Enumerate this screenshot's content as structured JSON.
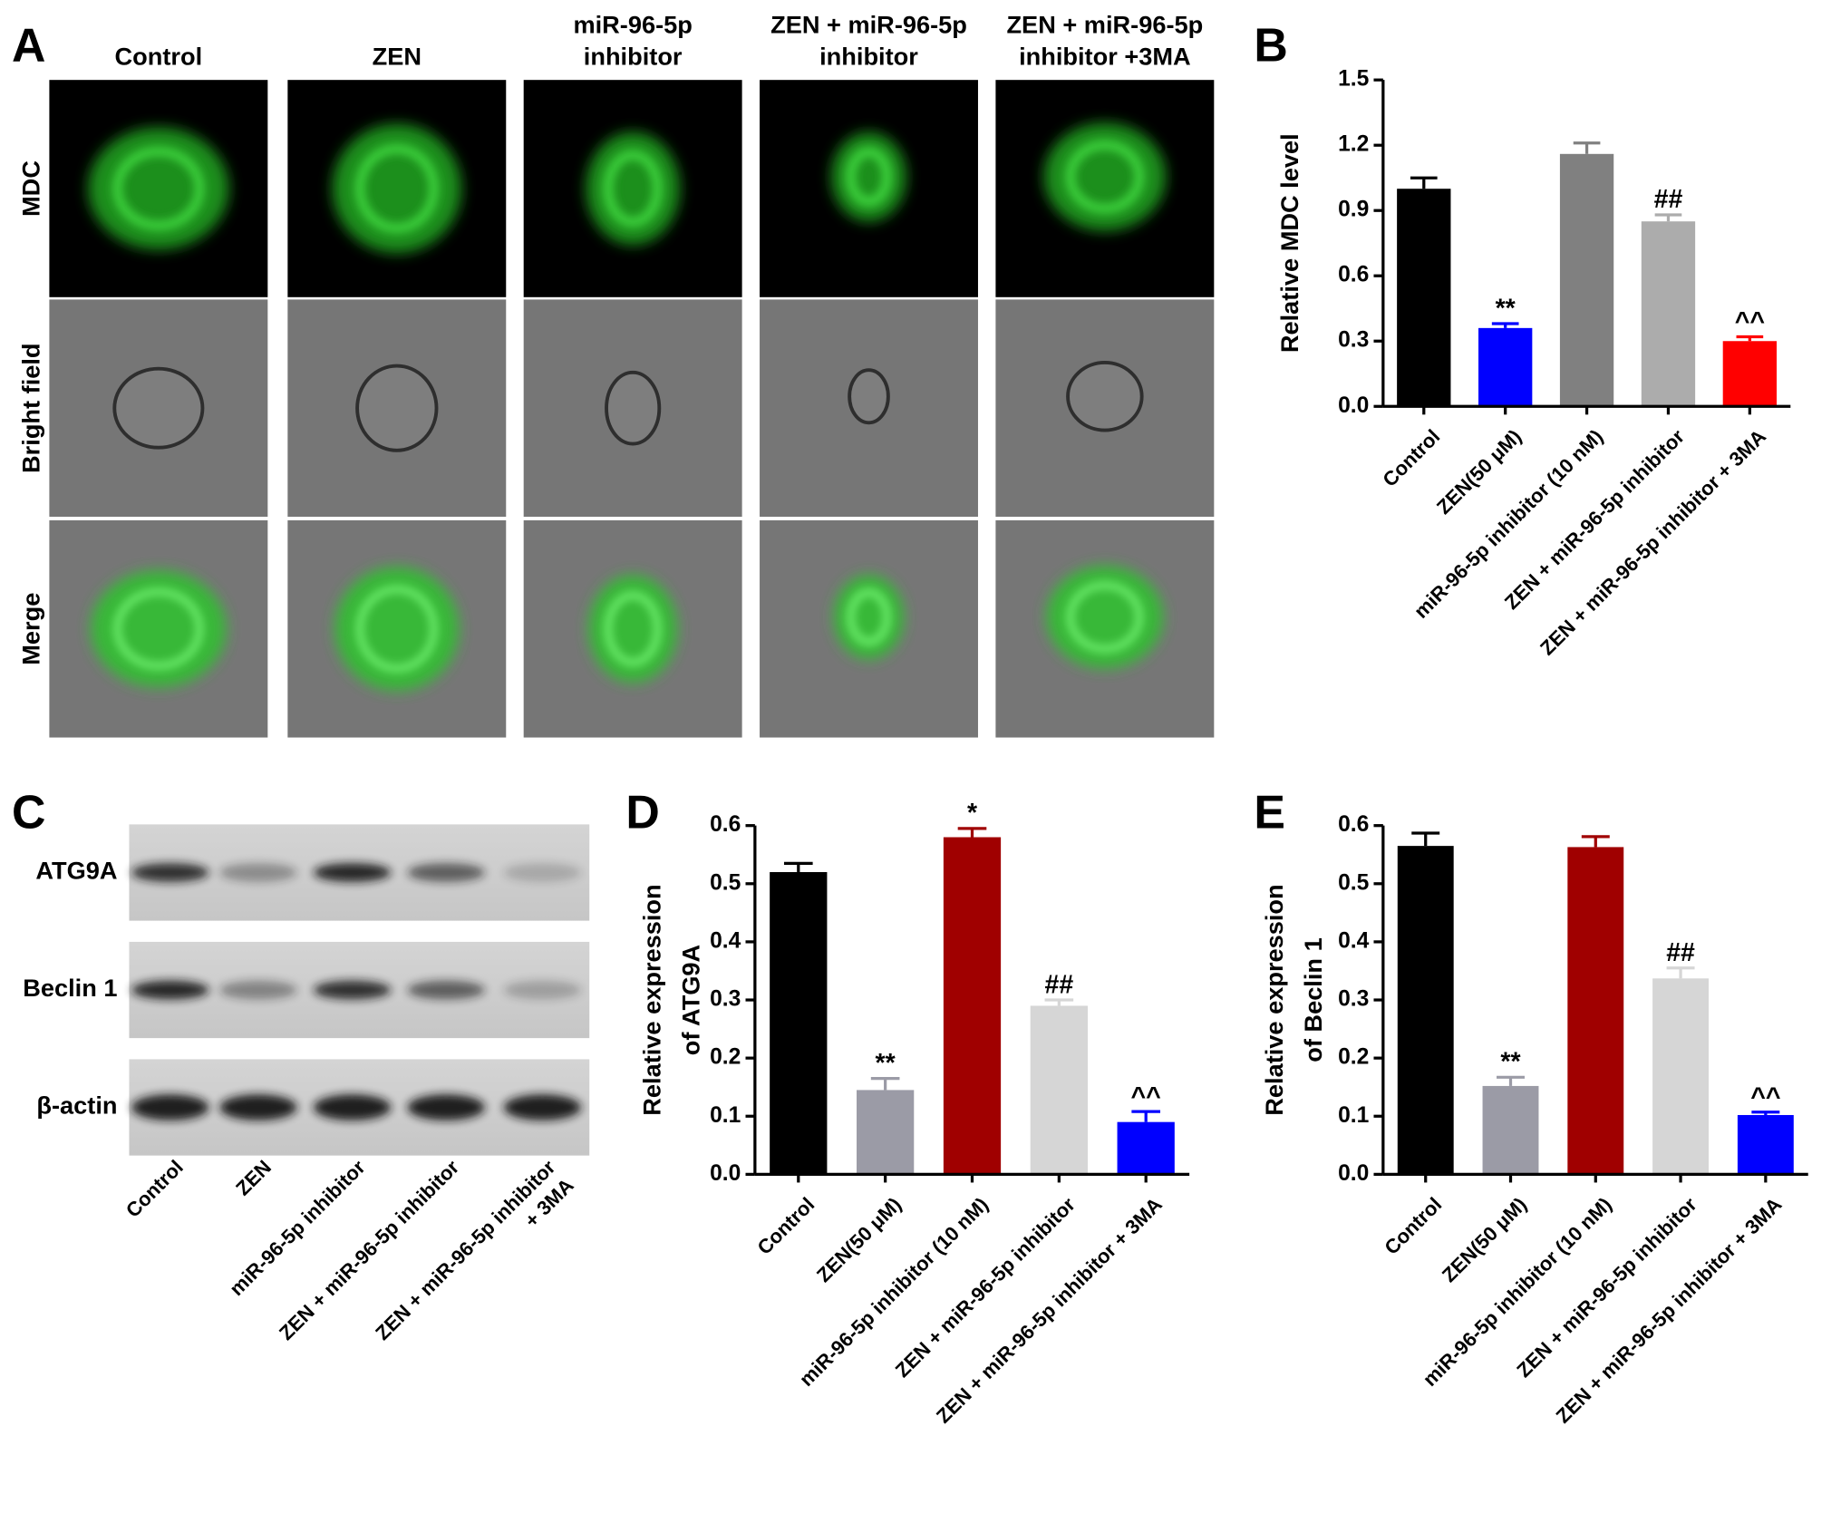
{
  "panel_labels": [
    "A",
    "B",
    "C",
    "D",
    "E"
  ],
  "microscopy": {
    "columns": [
      [
        "Control"
      ],
      [
        "ZEN"
      ],
      [
        "miR-96-5p",
        "inhibitor"
      ],
      [
        "ZEN + miR-96-5p",
        "inhibitor"
      ],
      [
        "ZEN + miR-96-5p",
        "inhibitor +3MA"
      ]
    ],
    "rows": [
      "MDC",
      "Bright field",
      "Merge"
    ]
  },
  "western_blot": {
    "proteins": [
      "ATG9A",
      "Beclin 1",
      "β-actin"
    ],
    "lanes": [
      [
        "Control"
      ],
      [
        "ZEN"
      ],
      [
        "miR-96-5p inhibitor"
      ],
      [
        "ZEN + miR-96-5p inhibitor"
      ],
      [
        "ZEN + miR-96-5p inhibitor",
        "+ 3MA"
      ]
    ]
  },
  "chart_data": [
    {
      "type": "bar",
      "y_label": [
        "Relative MDC level"
      ],
      "categories": [
        "Control",
        "ZEN(50 μM)",
        "miR-96-5p inhibitor (10 nM)",
        "ZEN + miR-96-5p inhibitor",
        "ZEN + miR-96-5p inhibitor + 3MA"
      ],
      "values": [
        1.0,
        0.36,
        1.16,
        0.85,
        0.3
      ],
      "errors": [
        0.05,
        0.02,
        0.05,
        0.03,
        0.02
      ],
      "colors": [
        "#000000",
        "#0000ff",
        "#808080",
        "#acacac",
        "#ff0000"
      ],
      "annotations": [
        null,
        "**",
        null,
        "##",
        "^^"
      ],
      "ylim": [
        0,
        1.5
      ],
      "yticks": [
        {
          "value": 0,
          "label": "0.0"
        },
        0.3,
        0.6,
        0.9,
        1.2,
        1.5
      ]
    },
    {
      "type": "bar",
      "y_label": [
        "Relative expression",
        "of ATG9A"
      ],
      "categories": [
        "Control",
        "ZEN(50 μM)",
        "miR-96-5p inhibitor (10 nM)",
        "ZEN + miR-96-5p inhibitor",
        "ZEN + miR-96-5p inhibitor + 3MA"
      ],
      "values": [
        0.52,
        0.145,
        0.58,
        0.29,
        0.09
      ],
      "errors": [
        0.015,
        0.02,
        0.015,
        0.01,
        0.018
      ],
      "colors": [
        "#000000",
        "#9b9ba6",
        "#a00000",
        "#d6d6d6",
        "#0000ff"
      ],
      "annotations": [
        null,
        "**",
        "*",
        "##",
        "^^"
      ],
      "ylim": [
        0,
        0.6
      ],
      "yticks": [
        {
          "value": 0,
          "label": "0.0"
        },
        0.1,
        0.2,
        0.3,
        0.4,
        0.5,
        0.6
      ]
    },
    {
      "type": "bar",
      "y_label": [
        "Relative expression",
        "of Beclin 1"
      ],
      "categories": [
        "Control",
        "ZEN(50 μM)",
        "miR-96-5p inhibitor (10 nM)",
        "ZEN + miR-96-5p inhibitor",
        "ZEN + miR-96-5p inhibitor + 3MA"
      ],
      "values": [
        0.565,
        0.152,
        0.563,
        0.337,
        0.102
      ],
      "errors": [
        0.022,
        0.015,
        0.018,
        0.018,
        0.005
      ],
      "colors": [
        "#000000",
        "#9b9ba6",
        "#a00000",
        "#d6d6d6",
        "#0000ff"
      ],
      "annotations": [
        null,
        "**",
        null,
        "##",
        "^^"
      ],
      "ylim": [
        0,
        0.6
      ],
      "yticks": [
        {
          "value": 0,
          "label": "0.0"
        },
        0.1,
        0.2,
        0.3,
        0.4,
        0.5,
        0.6
      ]
    }
  ]
}
